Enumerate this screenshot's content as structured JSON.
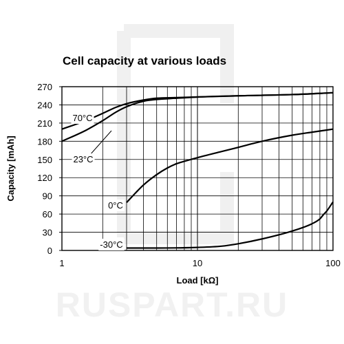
{
  "watermark": {
    "text": "RUSPART.RU"
  },
  "chart_data": {
    "type": "line",
    "title": "Cell capacity at various loads",
    "xlabel": "Load [kΩ]",
    "ylabel": "Capacity [mAh]",
    "xscale": "log",
    "xlim": [
      1,
      100
    ],
    "ylim": [
      0,
      270
    ],
    "xticks": [
      1,
      10,
      100
    ],
    "xtick_labels": [
      "1",
      "10",
      "100"
    ],
    "yticks": [
      0,
      30,
      60,
      90,
      120,
      150,
      180,
      210,
      240,
      270
    ],
    "grid": true,
    "series": [
      {
        "name": "70°C",
        "x": [
          1,
          1.5,
          2,
          2.5,
          3,
          4,
          5,
          7,
          10,
          20,
          50,
          100
        ],
        "y": [
          200,
          214,
          226,
          236,
          242,
          248,
          251,
          252,
          253,
          255,
          257,
          260
        ]
      },
      {
        "name": "23°C",
        "x": [
          1,
          1.5,
          2,
          2.5,
          3,
          4,
          5,
          7,
          10,
          20,
          50,
          100
        ],
        "y": [
          180,
          198,
          214,
          228,
          237,
          246,
          249,
          251,
          253,
          255,
          257,
          260
        ]
      },
      {
        "name": "0°C",
        "x": [
          3,
          3.5,
          4,
          5,
          6,
          7,
          8,
          10,
          15,
          20,
          30,
          50,
          70,
          100
        ],
        "y": [
          79,
          95,
          108,
          125,
          136,
          143,
          147,
          153,
          163,
          170,
          180,
          190,
          195,
          200
        ]
      },
      {
        "name": "-30°C",
        "x": [
          3,
          5,
          10,
          15,
          20,
          30,
          50,
          70,
          80,
          85,
          90,
          100
        ],
        "y": [
          4,
          4,
          5,
          7,
          11,
          19,
          32,
          44,
          52,
          59,
          65,
          80
        ]
      }
    ]
  }
}
